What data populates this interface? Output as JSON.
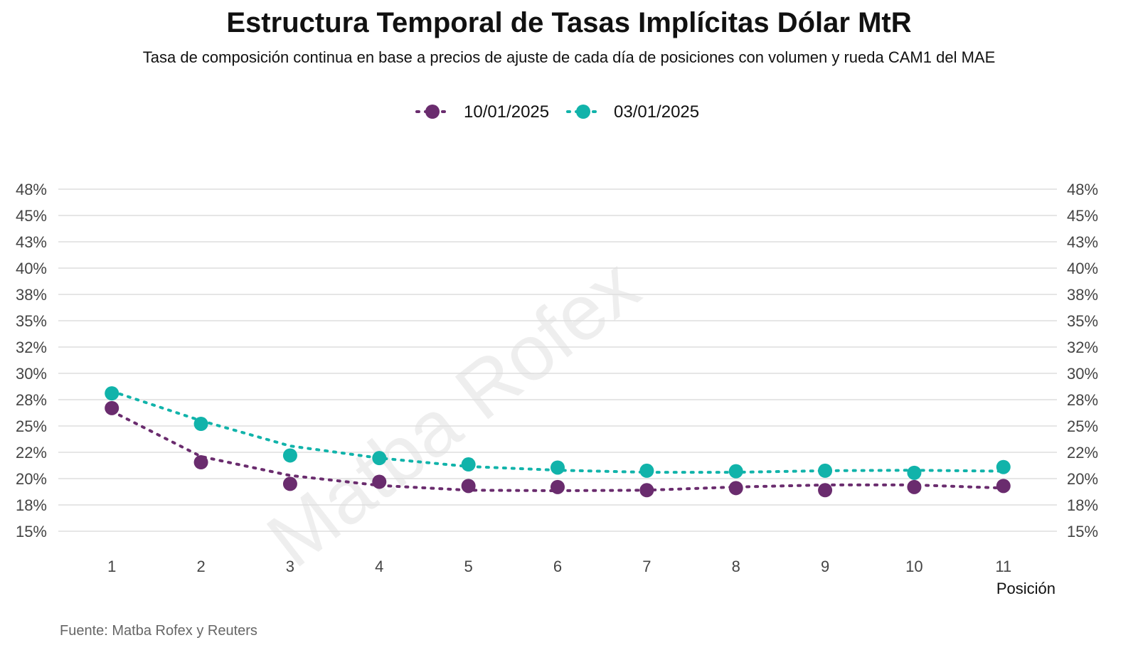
{
  "chart_data": {
    "type": "scatter",
    "title": "Estructura Temporal de Tasas Implícitas Dólar MtR",
    "subtitle": "Tasa de composición continua en base a precios de ajuste de cada día de posiciones con volumen y rueda CAM1 del MAE",
    "xlabel": "Posición",
    "ylabel": "",
    "source": "Fuente: Matba Rofex y Reuters",
    "watermark": "Matba Rofex",
    "x": [
      1,
      2,
      3,
      4,
      5,
      6,
      7,
      8,
      9,
      10,
      11
    ],
    "x_tick_labels": [
      "1",
      "2",
      "3",
      "4",
      "5",
      "6",
      "7",
      "8",
      "9",
      "10",
      "11"
    ],
    "y_tick_values": [
      0.15,
      0.175,
      0.2,
      0.225,
      0.25,
      0.275,
      0.3,
      0.325,
      0.35,
      0.375,
      0.4,
      0.425,
      0.45,
      0.475
    ],
    "y_tick_labels": [
      "15%",
      "18%",
      "20%",
      "22%",
      "25%",
      "28%",
      "30%",
      "32%",
      "35%",
      "38%",
      "40%",
      "43%",
      "45%",
      "48%"
    ],
    "ylim": [
      0.15,
      0.475
    ],
    "xlim": [
      0.4,
      11.6
    ],
    "grid": true,
    "legend_position": "top-center",
    "series": [
      {
        "name": "10/01/2025",
        "color": "#6A2C6E",
        "values": [
          0.267,
          0.2155,
          0.195,
          0.197,
          0.193,
          0.192,
          0.189,
          0.191,
          0.189,
          0.192,
          0.193
        ],
        "trend": [
          0.264,
          0.221,
          0.203,
          0.1935,
          0.189,
          0.1885,
          0.189,
          0.192,
          0.194,
          0.194,
          0.191
        ]
      },
      {
        "name": "03/01/2025",
        "color": "#11B3AA",
        "values": [
          0.281,
          0.252,
          0.222,
          0.2195,
          0.2135,
          0.2105,
          0.2075,
          0.207,
          0.2075,
          0.2055,
          0.211
        ],
        "trend": [
          0.283,
          0.255,
          0.231,
          0.2195,
          0.2115,
          0.208,
          0.206,
          0.206,
          0.2075,
          0.208,
          0.207
        ]
      }
    ]
  }
}
